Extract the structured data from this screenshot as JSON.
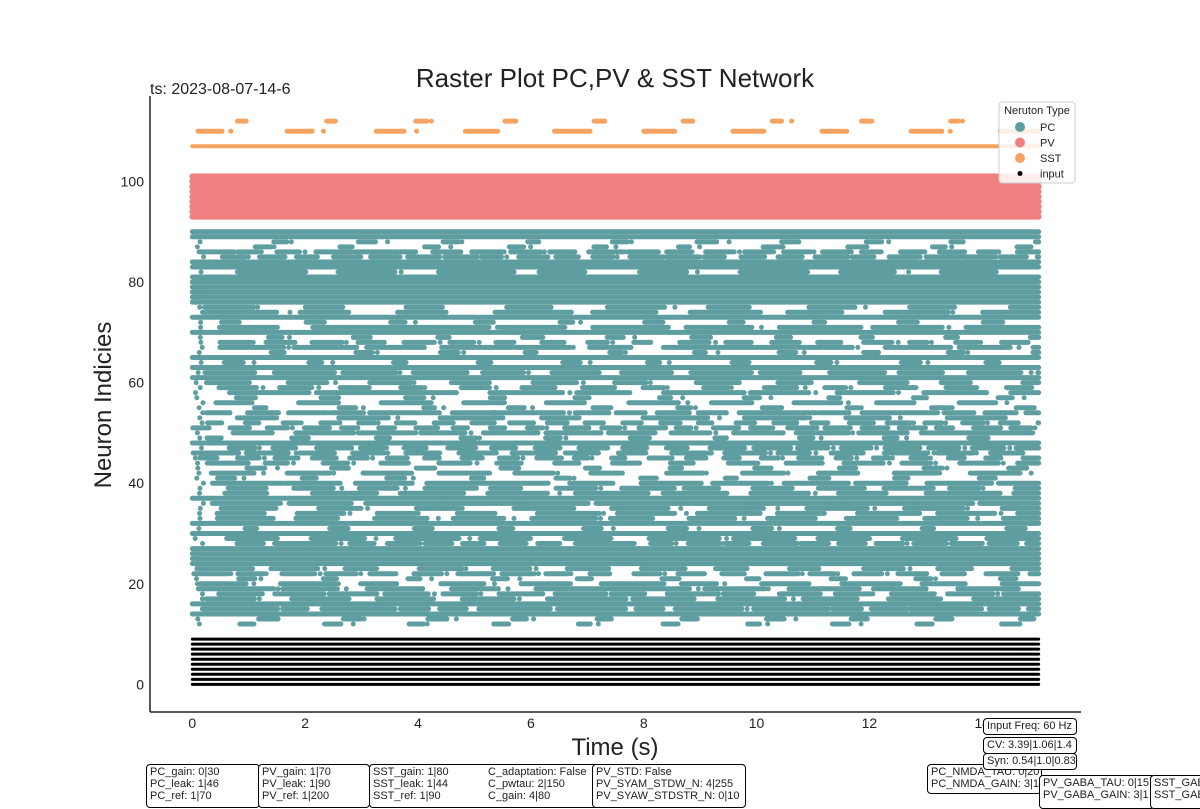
{
  "chart_data": {
    "type": "scatter",
    "title": "Raster Plot PC,PV & SST Network",
    "subtitle": "ts: 2023-08-07-14-6",
    "xlabel": "Time (s)",
    "ylabel": "Neuron Indicies",
    "xlim": [
      -0.75,
      15.75
    ],
    "ylim": [
      -5.5,
      117
    ],
    "x_ticks": [
      0,
      2,
      4,
      6,
      8,
      10,
      12,
      14
    ],
    "y_ticks": [
      0,
      20,
      40,
      60,
      80,
      100
    ],
    "x_tick_labels": [
      "0",
      "2",
      "4",
      "6",
      "8",
      "10",
      "12",
      "14"
    ],
    "y_tick_labels": [
      "0",
      "20",
      "40",
      "60",
      "80",
      "100"
    ],
    "grid": false,
    "legend": {
      "title": "Neruton Type",
      "placement": "top-right",
      "entries": [
        {
          "label": "PC",
          "color": "#5f9ea0"
        },
        {
          "label": "PV",
          "color": "#f08080"
        },
        {
          "label": "SST",
          "color": "#f4a460"
        },
        {
          "label": "input",
          "color": "#000000"
        }
      ]
    },
    "series": [
      {
        "name": "input",
        "color": "#000000",
        "neuron_range": [
          0,
          9
        ],
        "time_range": [
          0,
          15
        ],
        "pattern": "continuous"
      },
      {
        "name": "PC",
        "color": "#5f9ea0",
        "neuron_range": [
          12,
          90
        ],
        "time_range": [
          0,
          15
        ],
        "pattern": "mixed continuous and bursting"
      },
      {
        "name": "PV",
        "color": "#f08080",
        "neuron_range": [
          93,
          101
        ],
        "time_range": [
          0,
          15
        ],
        "pattern": "continuous"
      },
      {
        "name": "SST",
        "color": "#f4a460",
        "neuron_range": [
          107,
          112
        ],
        "time_range": [
          0,
          15
        ],
        "pattern": "one continuous row plus bursts"
      }
    ]
  },
  "params": {
    "pc": [
      "PC_gain: 0|30",
      "PC_leak: 1|46",
      "PC_ref: 1|70"
    ],
    "pv": [
      "PV_gain: 1|70",
      "PV_leak: 1|90",
      "PV_ref: 1|200"
    ],
    "sst": [
      "SST_gain: 1|80",
      "SST_leak: 1|44",
      "SST_ref: 1|90"
    ],
    "adapt": [
      "C_adaptation: False",
      "C_pwtau: 2|150",
      "C_gain: 4|80"
    ],
    "pvstd": [
      "PV_STD: False",
      "PV_SYAM_STDW_N: 4|255",
      "PV_SYAW_STDSTR_N: 0|10"
    ],
    "input_freq": "Input Freq: 60 Hz",
    "cv": "CV: 3.39|1.06|1.4",
    "syn": "Syn: 0.54|1.0|0.83",
    "nmda": [
      "PC_NMDA_TAU: 0|20",
      "PC_NMDA_GAIN: 3|1"
    ],
    "gaba": [
      "PV_GABA_TAU: 0|15",
      "PV_GABA_GAIN: 3|1"
    ],
    "sstgaba": [
      "SST_GAB",
      "SST_GAB"
    ]
  }
}
